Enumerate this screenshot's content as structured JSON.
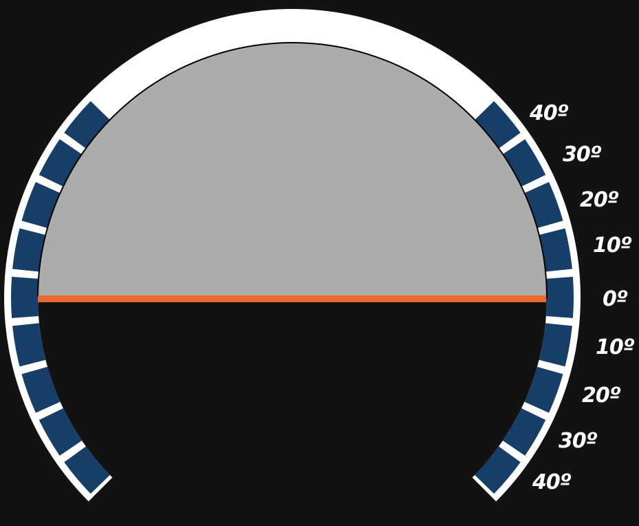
{
  "gauge": {
    "type": "pitch-indicator",
    "pitch_deg": 0,
    "scale": {
      "step_deg": 10,
      "upper_labels": [
        "40º",
        "30º",
        "20º",
        "10º",
        "0º"
      ],
      "lower_labels": [
        "10º",
        "20º",
        "30º",
        "40º"
      ]
    },
    "colors": {
      "background": "#121212",
      "rim": "#ffffff",
      "segment_fill": "#163d66",
      "sky": "#acacac",
      "ground": "#121212",
      "horizon": "#ea6a2f",
      "label": "#ffffff"
    }
  }
}
